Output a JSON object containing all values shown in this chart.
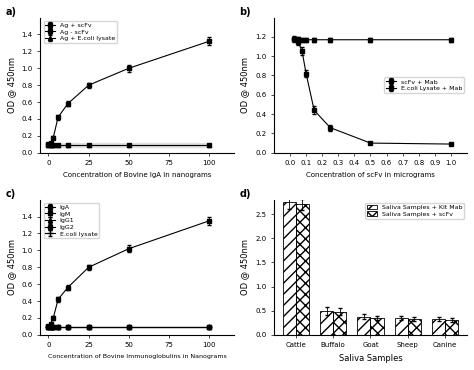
{
  "panel_a": {
    "title": "a)",
    "xlabel": "Concentration of Bovine IgA in nanograms",
    "ylabel": "OD @ 450nm",
    "xlim": [
      -5,
      115
    ],
    "ylim": [
      0.0,
      1.6
    ],
    "yticks": [
      0.0,
      0.2,
      0.4,
      0.6,
      0.8,
      1.0,
      1.2,
      1.4
    ],
    "xticks": [
      0,
      25,
      50,
      75,
      100
    ],
    "series": {
      "ag_scfv": {
        "x": [
          0,
          1.5,
          3,
          6,
          12,
          25,
          50,
          100
        ],
        "y": [
          0.1,
          0.12,
          0.18,
          0.42,
          0.58,
          0.8,
          1.0,
          1.32
        ],
        "yerr": [
          0.01,
          0.01,
          0.02,
          0.03,
          0.03,
          0.03,
          0.04,
          0.05
        ],
        "label": "Ag + scFv",
        "marker": "s",
        "linestyle": "-"
      },
      "ag_no_scfv": {
        "x": [
          0,
          1.5,
          3,
          6,
          12,
          25,
          50,
          100
        ],
        "y": [
          0.09,
          0.09,
          0.09,
          0.09,
          0.09,
          0.09,
          0.09,
          0.09
        ],
        "yerr": [
          0.005,
          0.005,
          0.005,
          0.005,
          0.005,
          0.005,
          0.005,
          0.005
        ],
        "label": "Ag - scFv",
        "marker": "s",
        "linestyle": "-"
      },
      "ag_ecoli": {
        "x": [
          0,
          1.5,
          3,
          6,
          12,
          25,
          50,
          100
        ],
        "y": [
          0.09,
          0.09,
          0.09,
          0.09,
          0.09,
          0.09,
          0.09,
          0.09
        ],
        "yerr": [
          0.005,
          0.005,
          0.005,
          0.005,
          0.005,
          0.005,
          0.005,
          0.005
        ],
        "label": "Ag + E.coli lysate",
        "marker": "^",
        "linestyle": "-"
      }
    }
  },
  "panel_b": {
    "title": "b)",
    "xlabel": "Concentration of scFv in micrograms",
    "ylabel": "OD @ 450nm",
    "xlim": [
      -0.1,
      1.1
    ],
    "ylim": [
      0.0,
      1.4
    ],
    "yticks": [
      0.0,
      0.2,
      0.4,
      0.6,
      0.8,
      1.0,
      1.2
    ],
    "xticks": [
      0.0,
      0.1,
      0.2,
      0.3,
      0.4,
      0.5,
      0.6,
      0.7,
      0.8,
      0.9,
      1.0
    ],
    "series": {
      "scfv_mab": {
        "x": [
          0.025,
          0.05,
          0.075,
          0.1,
          0.15,
          0.25,
          0.5,
          1.0
        ],
        "y": [
          1.18,
          1.15,
          1.05,
          0.82,
          0.44,
          0.26,
          0.1,
          0.09
        ],
        "yerr": [
          0.03,
          0.03,
          0.04,
          0.04,
          0.04,
          0.03,
          0.01,
          0.01
        ],
        "label": "scFv + Mab",
        "marker": "s",
        "linestyle": "-"
      },
      "ecoli_mab": {
        "x": [
          0.025,
          0.05,
          0.075,
          0.1,
          0.15,
          0.25,
          0.5,
          1.0
        ],
        "y": [
          1.18,
          1.18,
          1.17,
          1.17,
          1.17,
          1.17,
          1.17,
          1.17
        ],
        "yerr": [
          0.02,
          0.02,
          0.02,
          0.02,
          0.02,
          0.02,
          0.02,
          0.02
        ],
        "label": "E.coli Lysate + Mab",
        "marker": "s",
        "linestyle": "-"
      }
    }
  },
  "panel_c": {
    "title": "c)",
    "xlabel": "Concentration of Bovine Immunoglobulins in Nanograms",
    "ylabel": "OD @ 450nm",
    "xlim": [
      -5,
      115
    ],
    "ylim": [
      0.0,
      1.6
    ],
    "yticks": [
      0.0,
      0.2,
      0.4,
      0.6,
      0.8,
      1.0,
      1.2,
      1.4
    ],
    "xticks": [
      0,
      25,
      50,
      75,
      100
    ],
    "series": {
      "IgA": {
        "x": [
          0,
          1.5,
          3,
          6,
          12,
          25,
          50,
          100
        ],
        "y": [
          0.1,
          0.13,
          0.2,
          0.42,
          0.56,
          0.8,
          1.02,
          1.35
        ],
        "yerr": [
          0.01,
          0.01,
          0.02,
          0.03,
          0.03,
          0.03,
          0.04,
          0.05
        ],
        "label": "IgA",
        "marker": "s",
        "linestyle": "-"
      },
      "IgM": {
        "x": [
          0,
          1.5,
          3,
          6,
          12,
          25,
          50,
          100
        ],
        "y": [
          0.09,
          0.09,
          0.09,
          0.09,
          0.09,
          0.09,
          0.09,
          0.09
        ],
        "yerr": [
          0.005,
          0.005,
          0.005,
          0.005,
          0.005,
          0.005,
          0.005,
          0.005
        ],
        "label": "IgM",
        "marker": "s",
        "linestyle": "-"
      },
      "IgG1": {
        "x": [
          0,
          1.5,
          3,
          6,
          12,
          25,
          50,
          100
        ],
        "y": [
          0.09,
          0.09,
          0.09,
          0.09,
          0.09,
          0.09,
          0.09,
          0.09
        ],
        "yerr": [
          0.005,
          0.005,
          0.005,
          0.005,
          0.005,
          0.005,
          0.005,
          0.005
        ],
        "label": "IgG1",
        "marker": "^",
        "linestyle": "-"
      },
      "IgG2": {
        "x": [
          0,
          1.5,
          3,
          6,
          12,
          25,
          50,
          100
        ],
        "y": [
          0.09,
          0.09,
          0.09,
          0.09,
          0.09,
          0.09,
          0.09,
          0.09
        ],
        "yerr": [
          0.005,
          0.005,
          0.005,
          0.005,
          0.005,
          0.005,
          0.005,
          0.005
        ],
        "label": "IgG2",
        "marker": "s",
        "linestyle": "-"
      },
      "ecoli": {
        "x": [
          0,
          1.5,
          3,
          6,
          12,
          25,
          50,
          100
        ],
        "y": [
          0.09,
          0.09,
          0.09,
          0.09,
          0.09,
          0.09,
          0.09,
          0.09
        ],
        "yerr": [
          0.005,
          0.005,
          0.005,
          0.005,
          0.005,
          0.005,
          0.005,
          0.005
        ],
        "label": "E.coli lysate",
        "marker": "+",
        "linestyle": "-"
      }
    }
  },
  "panel_d": {
    "title": "d)",
    "xlabel": "Saliva Samples",
    "ylabel": "OD @ 450nm",
    "ylim": [
      0,
      2.8
    ],
    "yticks": [
      0.0,
      0.5,
      1.0,
      1.5,
      2.0,
      2.5
    ],
    "categories": [
      "Cattle",
      "Buffalo",
      "Goat",
      "Sheep",
      "Canine"
    ],
    "kit_mab": [
      2.75,
      0.5,
      0.38,
      0.35,
      0.33
    ],
    "kit_mab_err": [
      0.15,
      0.08,
      0.06,
      0.05,
      0.05
    ],
    "scfv": [
      2.7,
      0.48,
      0.35,
      0.32,
      0.3
    ],
    "scfv_err": [
      0.12,
      0.07,
      0.05,
      0.04,
      0.04
    ],
    "legend_kit": "Saliva Samples + Kit Mab",
    "legend_scfv": "Saliva Samples + scFv",
    "hatch_kit": "///",
    "hatch_scfv": "xxx"
  }
}
